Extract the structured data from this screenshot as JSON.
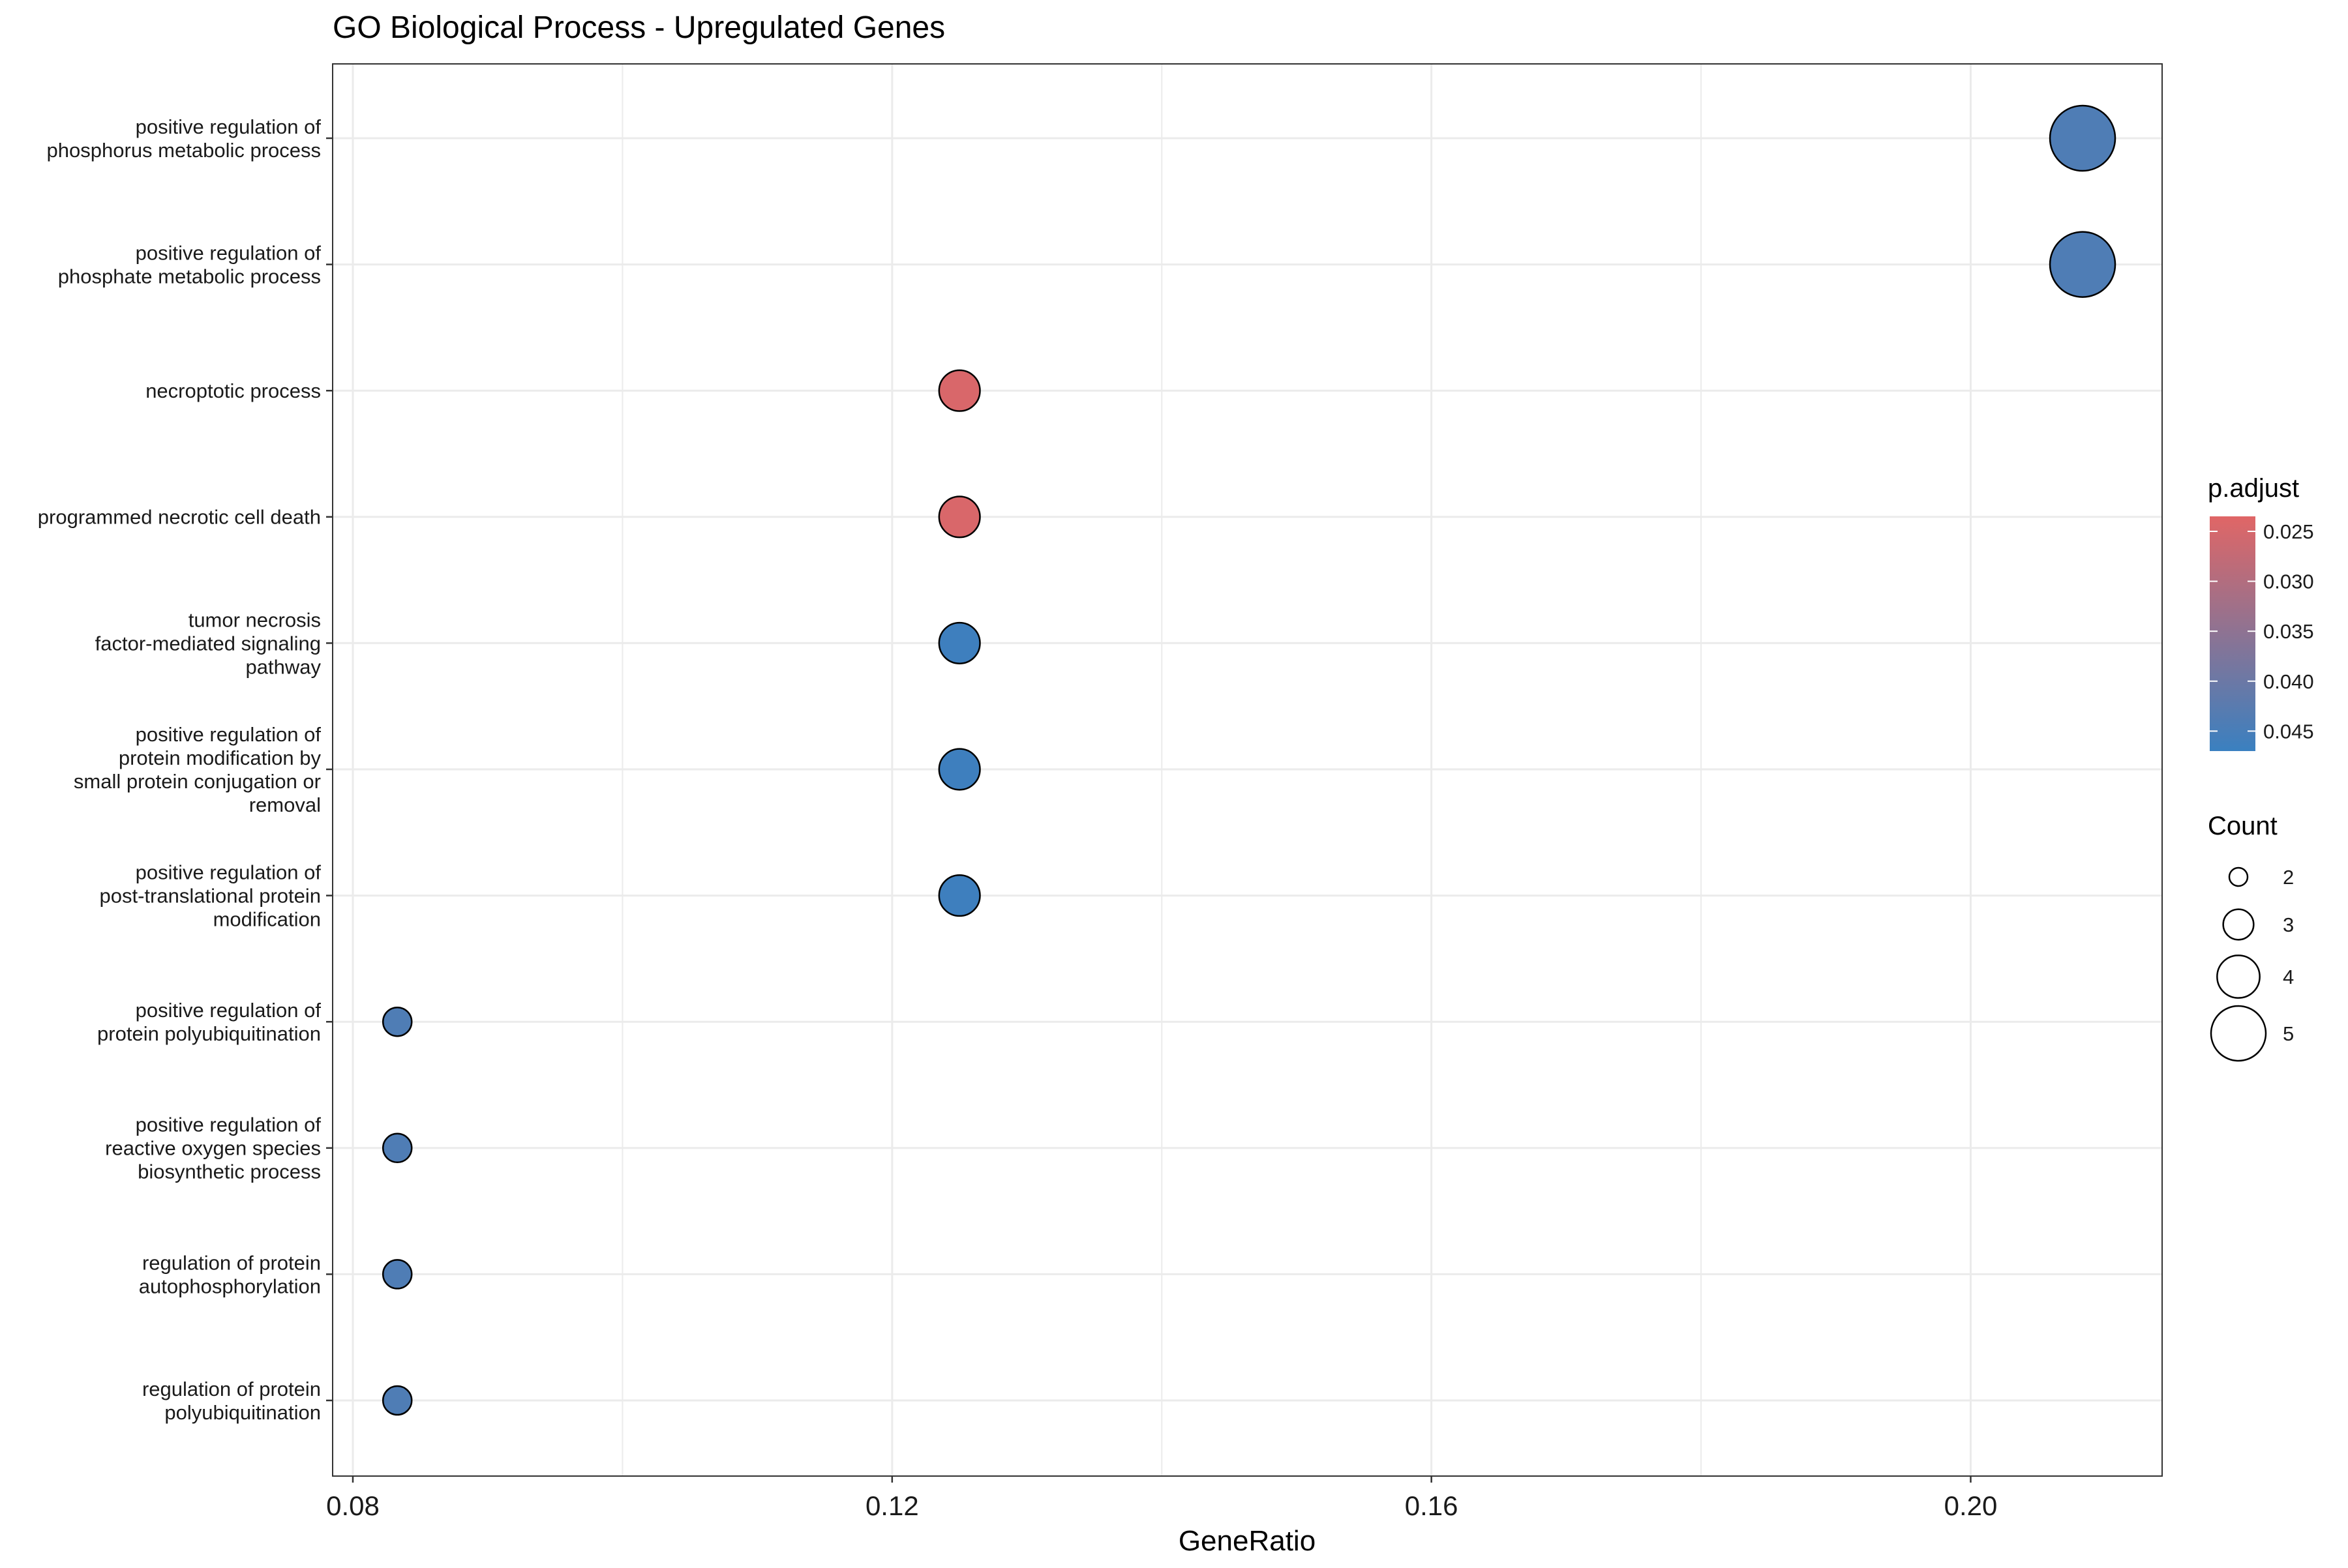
{
  "chart_data": {
    "type": "scatter",
    "title": "GO Biological Process - Upregulated Genes",
    "xlabel": "GeneRatio",
    "ylabel": "",
    "xlim": [
      0.0785,
      0.2142
    ],
    "x_ticks": [
      {
        "value": 0.08,
        "label": "0.08"
      },
      {
        "value": 0.12,
        "label": "0.12"
      },
      {
        "value": 0.16,
        "label": "0.16"
      },
      {
        "value": 0.2,
        "label": "0.20"
      }
    ],
    "grid": true,
    "categories": [
      [
        "positive regulation of",
        "phosphorus metabolic process"
      ],
      [
        "positive regulation of",
        "phosphate metabolic process"
      ],
      [
        "necroptotic process"
      ],
      [
        "programmed necrotic cell death"
      ],
      [
        "tumor necrosis",
        "factor-mediated signaling",
        "pathway"
      ],
      [
        "positive regulation of",
        "protein modification by",
        "small protein conjugation or",
        "removal"
      ],
      [
        "positive regulation of",
        "post-translational protein",
        "modification"
      ],
      [
        "positive regulation of",
        "protein polyubiquitination"
      ],
      [
        "positive regulation of",
        "reactive oxygen species",
        "biosynthetic process"
      ],
      [
        "regulation of protein",
        "autophosphorylation"
      ],
      [
        "regulation of protein",
        "polyubiquitination"
      ]
    ],
    "points": [
      {
        "x": 0.2083,
        "count": 5,
        "p_adjust": 0.044
      },
      {
        "x": 0.2083,
        "count": 5,
        "p_adjust": 0.044
      },
      {
        "x": 0.125,
        "count": 3,
        "p_adjust": 0.0245
      },
      {
        "x": 0.125,
        "count": 3,
        "p_adjust": 0.0245
      },
      {
        "x": 0.125,
        "count": 3,
        "p_adjust": 0.0465
      },
      {
        "x": 0.125,
        "count": 3,
        "p_adjust": 0.0465
      },
      {
        "x": 0.125,
        "count": 3,
        "p_adjust": 0.0465
      },
      {
        "x": 0.0833,
        "count": 2,
        "p_adjust": 0.044
      },
      {
        "x": 0.0833,
        "count": 2,
        "p_adjust": 0.044
      },
      {
        "x": 0.0833,
        "count": 2,
        "p_adjust": 0.044
      },
      {
        "x": 0.0833,
        "count": 2,
        "p_adjust": 0.044
      }
    ],
    "color_legend": {
      "title": "p.adjust",
      "placement": "right",
      "low_color": "#E06666",
      "high_color": "#3A80C0",
      "range": [
        0.0235,
        0.047
      ],
      "ticks": [
        {
          "value": 0.025,
          "label": "0.025"
        },
        {
          "value": 0.03,
          "label": "0.030"
        },
        {
          "value": 0.035,
          "label": "0.035"
        },
        {
          "value": 0.04,
          "label": "0.040"
        },
        {
          "value": 0.045,
          "label": "0.045"
        }
      ]
    },
    "size_legend": {
      "title": "Count",
      "placement": "right",
      "entries": [
        {
          "count": 2,
          "label": "2"
        },
        {
          "count": 3,
          "label": "3"
        },
        {
          "count": 4,
          "label": "4"
        },
        {
          "count": 5,
          "label": "5"
        }
      ]
    }
  }
}
